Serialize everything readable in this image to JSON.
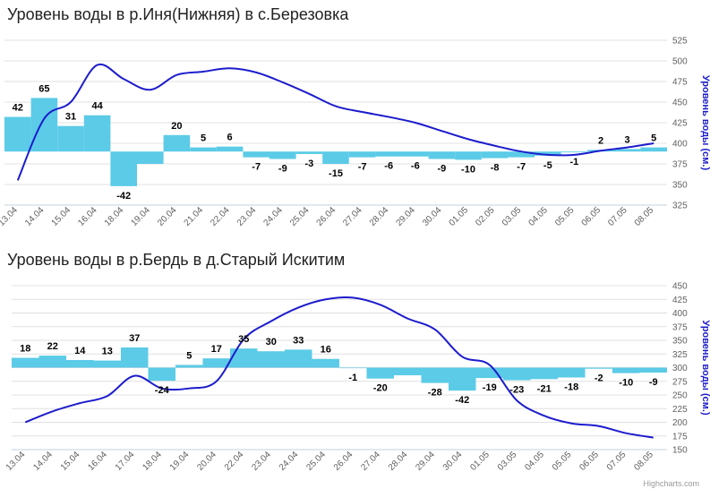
{
  "chart_data": [
    {
      "type": "bar+line",
      "title": "Уровень воды в р.Иня(Нижняя) в с.Березовка",
      "ylabel": "Уровень воды (см.)",
      "ylim": [
        325,
        525
      ],
      "yticks": [
        325,
        350,
        375,
        400,
        425,
        450,
        475,
        500,
        525
      ],
      "baseline": 390,
      "categories": [
        "13.04",
        "14.04",
        "15.04",
        "16.04",
        "18.04",
        "19.04",
        "20.04",
        "21.04",
        "22.04",
        "23.04",
        "24.04",
        "25.04",
        "26.04",
        "27.04",
        "28.04",
        "29.04",
        "30.04",
        "01.05",
        "02.05",
        "03.05",
        "04.05",
        "05.05",
        "06.05",
        "07.05",
        "08.05"
      ],
      "values": [
        42,
        65,
        31,
        44,
        -42,
        -15,
        20,
        5,
        6,
        -7,
        -9,
        -3,
        -15,
        -7,
        -6,
        -6,
        -9,
        -10,
        -8,
        -7,
        -5,
        -1,
        2,
        3,
        5
      ],
      "labels": [
        "42",
        "65",
        "31",
        "44",
        "-42",
        "",
        "20",
        "5",
        "6",
        "-7",
        "-9",
        "-3",
        "-15",
        "-7",
        "-6",
        "-6",
        "-9",
        "-10",
        "-8",
        "-7",
        "-5",
        "-1",
        "2",
        "3",
        "5"
      ],
      "line": [
        355,
        430,
        450,
        495,
        478,
        465,
        483,
        487,
        491,
        486,
        474,
        460,
        445,
        438,
        432,
        425,
        415,
        405,
        397,
        390,
        386,
        386,
        391,
        395,
        400
      ],
      "colors": {
        "bar": "#5bcbe7",
        "line": "#1c1ccd",
        "grid": "#e0e0e0"
      }
    },
    {
      "type": "bar+line",
      "title": "Уровень воды в р.Бердь в д.Старый Искитим",
      "ylabel": "Уровень воды (см.)",
      "ylim": [
        150,
        450
      ],
      "yticks": [
        150,
        175,
        200,
        225,
        250,
        275,
        300,
        325,
        350,
        375,
        400,
        425,
        450
      ],
      "baseline": 300,
      "categories": [
        "13.04",
        "14.04",
        "15.04",
        "16.04",
        "17.04",
        "18.04",
        "19.04",
        "20.04",
        "22.04",
        "23.04",
        "24.04",
        "25.04",
        "26.04",
        "27.04",
        "28.04",
        "29.04",
        "30.04",
        "01.05",
        "03.05",
        "04.05",
        "05.05",
        "06.05",
        "07.05",
        "08.05"
      ],
      "values": [
        18,
        22,
        14,
        13,
        37,
        -24,
        5,
        17,
        35,
        30,
        33,
        16,
        -1,
        -20,
        -14,
        -28,
        -42,
        -19,
        -23,
        -21,
        -18,
        -2,
        -10,
        -9
      ],
      "labels": [
        "18",
        "22",
        "14",
        "13",
        "37",
        "-24",
        "5",
        "17",
        "35",
        "30",
        "33",
        "16",
        "-1",
        "-20",
        "",
        "-28",
        "-42",
        "-19",
        "-23",
        "-21",
        "-18",
        "-2",
        "-10",
        "-9"
      ],
      "line": [
        200,
        220,
        235,
        248,
        285,
        262,
        262,
        275,
        352,
        385,
        410,
        425,
        428,
        415,
        390,
        370,
        320,
        305,
        240,
        212,
        198,
        193,
        180,
        172
      ],
      "colors": {
        "bar": "#5bcbe7",
        "line": "#1c1ccd",
        "grid": "#e0e0e0"
      }
    }
  ],
  "credits": "Highcharts.com"
}
